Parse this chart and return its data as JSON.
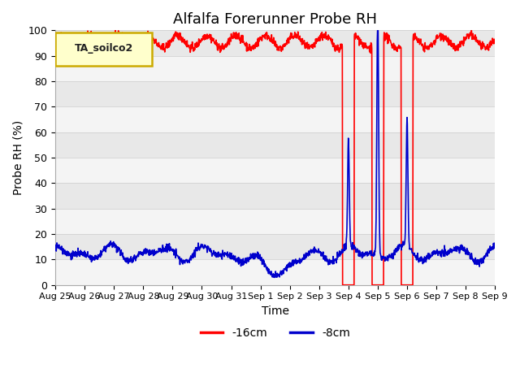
{
  "title": "Alfalfa Forerunner Probe RH",
  "xlabel": "Time",
  "ylabel": "Probe RH (%)",
  "ylim": [
    0,
    100
  ],
  "yticks": [
    0,
    10,
    20,
    30,
    40,
    50,
    60,
    70,
    80,
    90,
    100
  ],
  "xtick_labels": [
    "Aug 25",
    "Aug 26",
    "Aug 27",
    "Aug 28",
    "Aug 29",
    "Aug 30",
    "Aug 31",
    "Sep 1",
    "Sep 2",
    "Sep 3",
    "Sep 4",
    "Sep 5",
    "Sep 6",
    "Sep 7",
    "Sep 8",
    "Sep 9"
  ],
  "xtick_positions": [
    0,
    1,
    2,
    3,
    4,
    5,
    6,
    7,
    8,
    9,
    10,
    11,
    12,
    13,
    14,
    15
  ],
  "red_color": "#FF0000",
  "blue_color": "#0000CC",
  "legend_label": "TA_soilco2",
  "legend_box_facecolor": "#FFFFCC",
  "legend_box_edgecolor": "#CCAA00",
  "series_labels": [
    "-16cm",
    "-8cm"
  ],
  "background_color": "#E8E8E8",
  "title_fontsize": 13,
  "axis_fontsize": 10,
  "tick_fontsize": 9
}
